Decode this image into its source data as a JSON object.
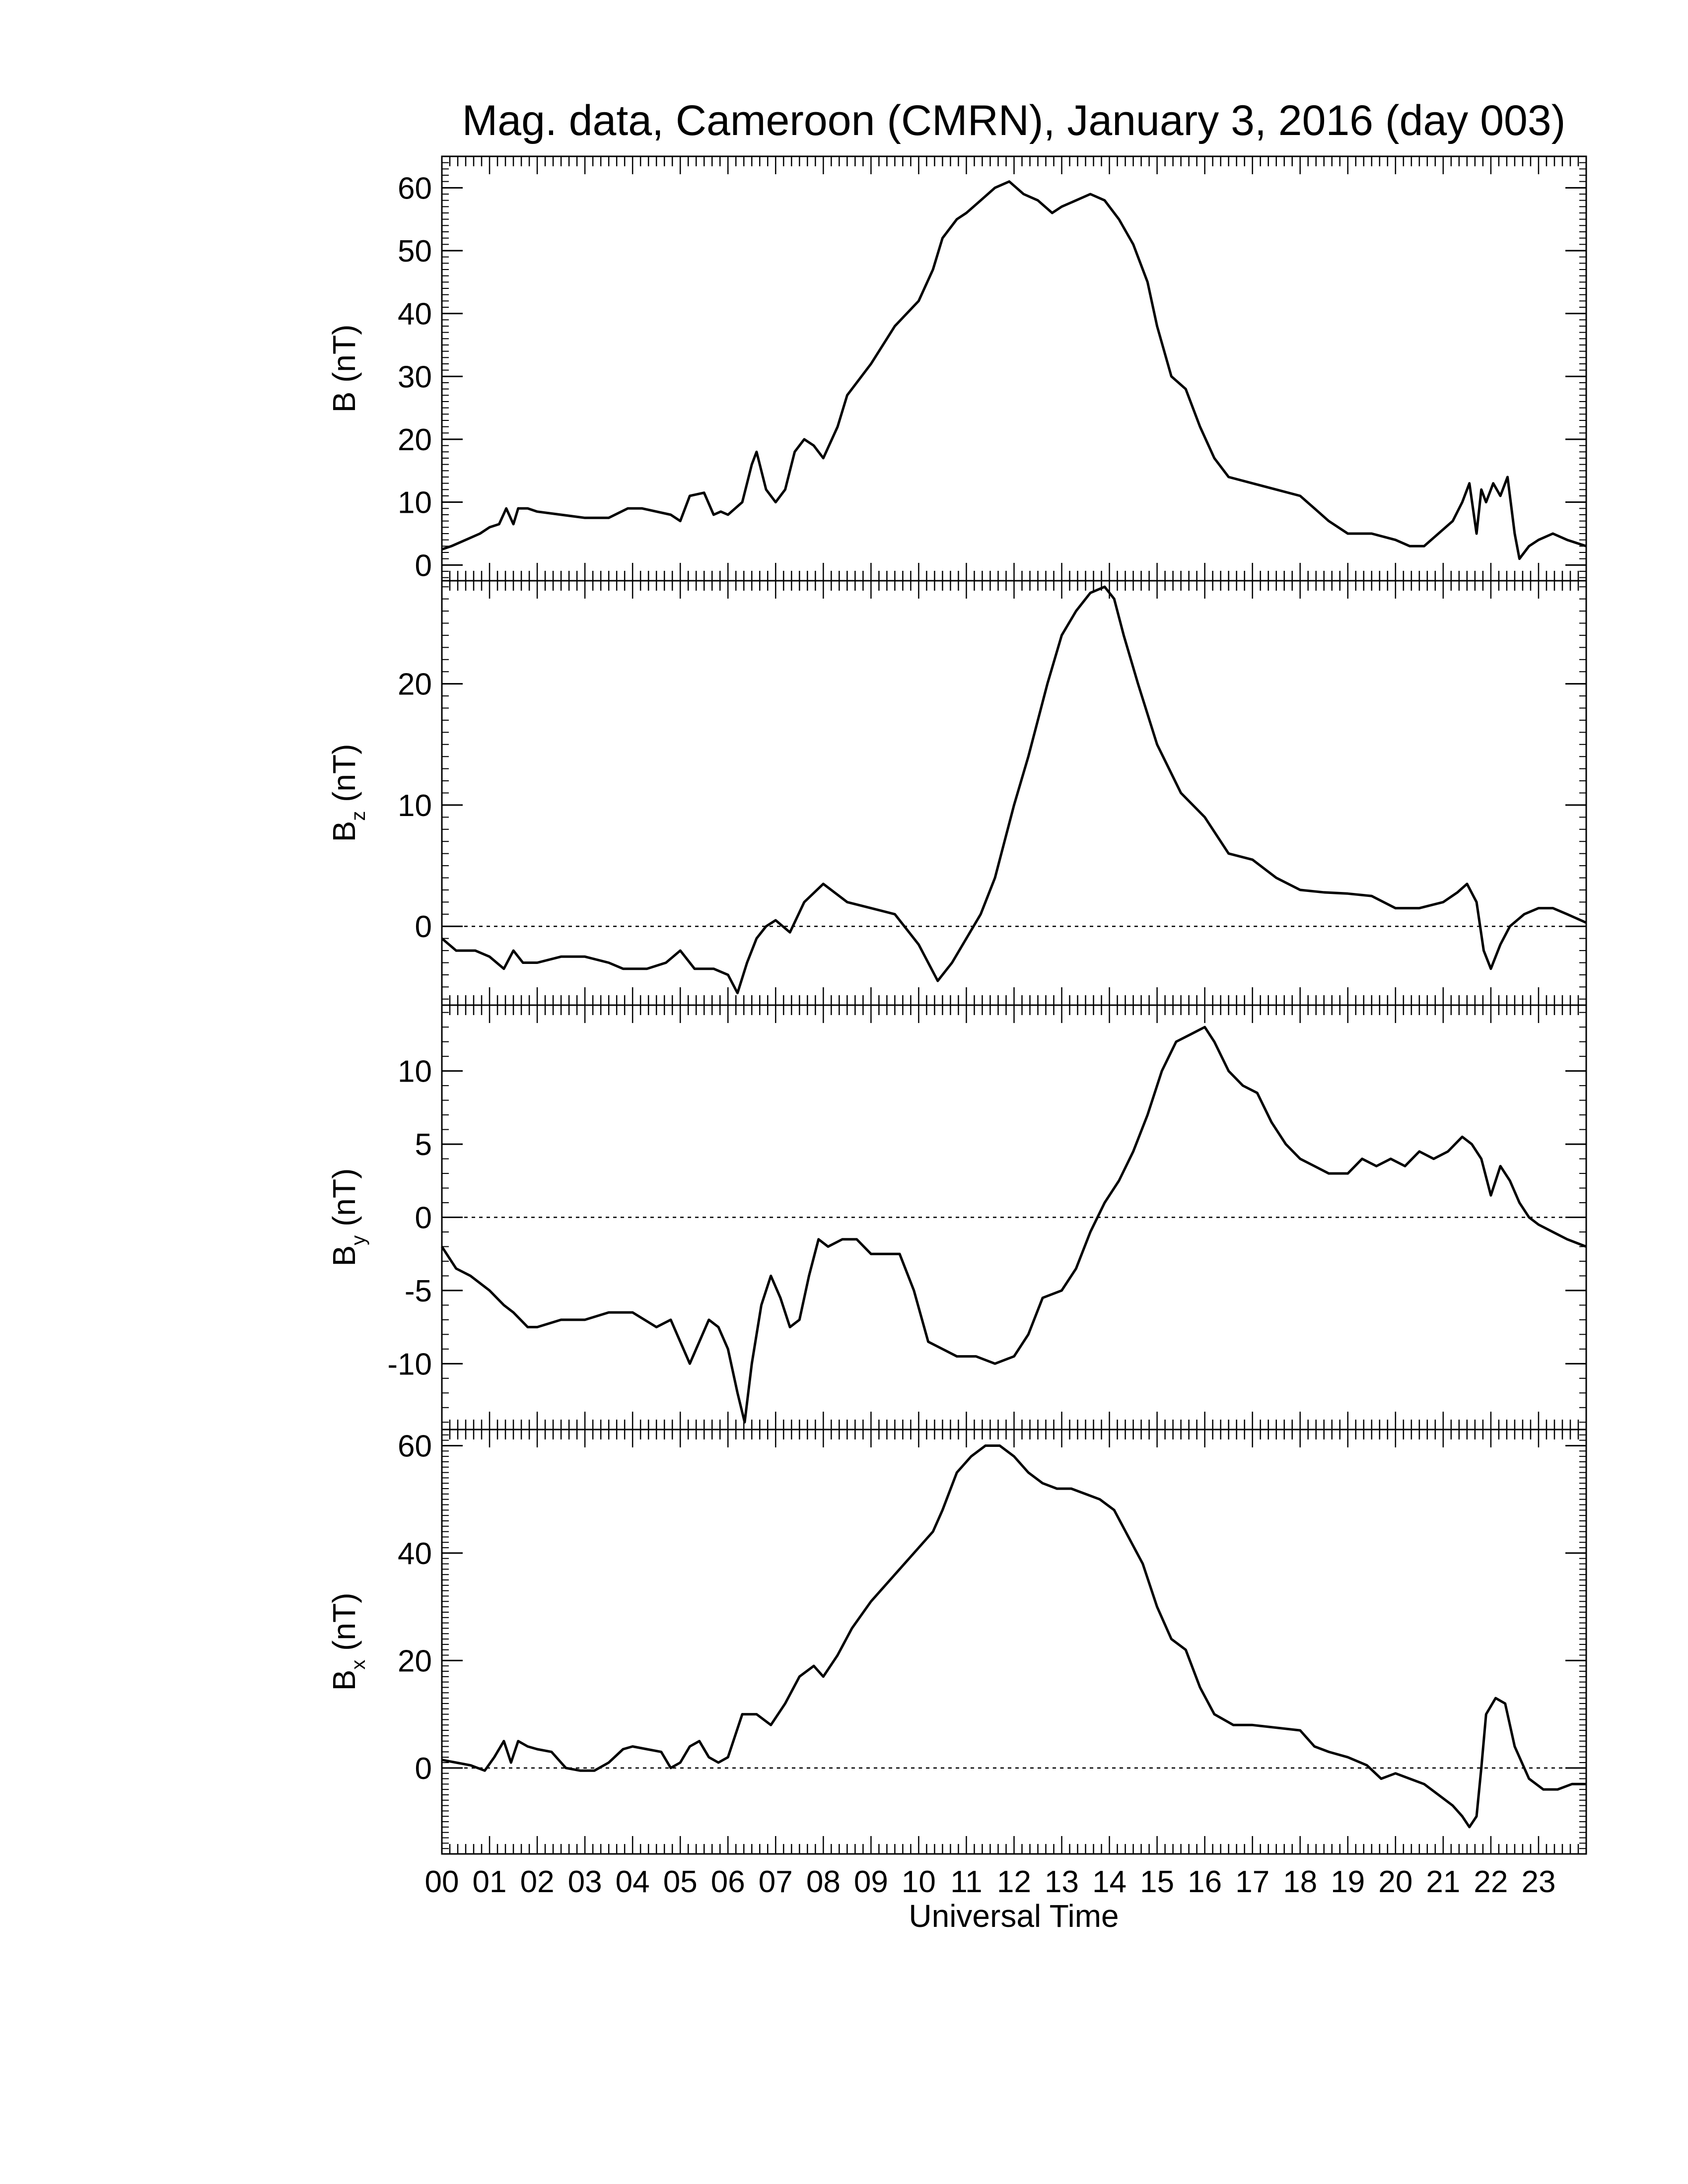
{
  "title": "Mag. data, Cameroon (CMRN), January 3, 2016 (day 003)",
  "xlabel": "Universal Time",
  "xlim": [
    0,
    24
  ],
  "xtick_labels": [
    "00",
    "01",
    "02",
    "03",
    "04",
    "05",
    "06",
    "07",
    "08",
    "09",
    "10",
    "11",
    "12",
    "13",
    "14",
    "15",
    "16",
    "17",
    "18",
    "19",
    "20",
    "21",
    "22",
    "23"
  ],
  "chart_data": [
    {
      "type": "line",
      "ylabel": "B (nT)",
      "ylabel_main": "B",
      "ylabel_sub": "",
      "ylabel_unit": " (nT)",
      "ylim": [
        -2.5,
        65
      ],
      "yticks": [
        0,
        10,
        20,
        30,
        40,
        50,
        60
      ],
      "ytick_labels": [
        "0",
        "10",
        "20",
        "30",
        "40",
        "50",
        "60"
      ],
      "zero_line": false,
      "x": [
        0,
        0.2,
        0.5,
        0.8,
        1.0,
        1.2,
        1.35,
        1.5,
        1.6,
        1.8,
        2.0,
        2.5,
        3.0,
        3.5,
        3.9,
        4.2,
        4.8,
        5.0,
        5.2,
        5.5,
        5.7,
        5.85,
        6.0,
        6.3,
        6.5,
        6.6,
        6.8,
        7.0,
        7.2,
        7.4,
        7.6,
        7.8,
        8.0,
        8.3,
        8.5,
        9.0,
        9.5,
        10.0,
        10.3,
        10.5,
        10.8,
        11.0,
        11.3,
        11.6,
        11.9,
        12.2,
        12.5,
        12.8,
        13.0,
        13.3,
        13.6,
        13.9,
        14.2,
        14.5,
        14.8,
        15.0,
        15.3,
        15.6,
        15.9,
        16.2,
        16.5,
        17.0,
        17.5,
        18.0,
        18.3,
        18.6,
        19.0,
        19.5,
        20.0,
        20.3,
        20.6,
        20.9,
        21.2,
        21.4,
        21.55,
        21.7,
        21.8,
        21.9,
        22.05,
        22.2,
        22.35,
        22.5,
        22.6,
        22.8,
        23.0,
        23.3,
        23.6,
        24.0
      ],
      "y": [
        2.5,
        3,
        4,
        5,
        6,
        6.5,
        9,
        6.5,
        9,
        9,
        8.5,
        8,
        7.5,
        7.5,
        9,
        9,
        8,
        7,
        11,
        11.5,
        8,
        8.5,
        8,
        10,
        16,
        18,
        12,
        10,
        12,
        18,
        20,
        19,
        17,
        22,
        27,
        32,
        38,
        42,
        47,
        52,
        55,
        56,
        58,
        60,
        61,
        59,
        58,
        56,
        57,
        58,
        59,
        58,
        55,
        51,
        45,
        38,
        30,
        28,
        22,
        17,
        14,
        13,
        12,
        11,
        9,
        7,
        5,
        5,
        4,
        3,
        3,
        5,
        7,
        10,
        13,
        5,
        12,
        10,
        13,
        11,
        14,
        5,
        1,
        3,
        4,
        5,
        4,
        3
      ]
    },
    {
      "type": "line",
      "ylabel": "Bz (nT)",
      "ylabel_main": "B",
      "ylabel_sub": "z",
      "ylabel_unit": " (nT)",
      "ylim": [
        -6.5,
        28.5
      ],
      "yticks": [
        0,
        10,
        20
      ],
      "ytick_labels": [
        "0",
        "10",
        "20"
      ],
      "zero_line": true,
      "x": [
        0,
        0.3,
        0.7,
        1.0,
        1.3,
        1.5,
        1.7,
        2.0,
        2.5,
        3.0,
        3.5,
        3.8,
        4.3,
        4.7,
        5.0,
        5.3,
        5.7,
        6.0,
        6.2,
        6.4,
        6.6,
        6.8,
        7.0,
        7.3,
        7.6,
        8.0,
        8.5,
        9.0,
        9.5,
        9.8,
        10.0,
        10.2,
        10.4,
        10.7,
        11.0,
        11.3,
        11.6,
        12.0,
        12.3,
        12.7,
        13.0,
        13.3,
        13.6,
        13.9,
        14.1,
        14.3,
        14.6,
        15.0,
        15.5,
        16.0,
        16.5,
        17.0,
        17.5,
        18.0,
        18.5,
        19.0,
        19.5,
        20.0,
        20.5,
        21.0,
        21.3,
        21.5,
        21.7,
        21.85,
        22.0,
        22.2,
        22.4,
        22.7,
        23.0,
        23.3,
        23.6,
        24.0
      ],
      "y": [
        -1,
        -2,
        -2,
        -2.5,
        -3.5,
        -2,
        -3,
        -3,
        -2.5,
        -2.5,
        -3,
        -3.5,
        -3.5,
        -3,
        -2,
        -3.5,
        -3.5,
        -4,
        -5.5,
        -3,
        -1,
        0,
        0.5,
        -0.5,
        2,
        3.5,
        2,
        1.5,
        1,
        -0.5,
        -1.5,
        -3,
        -4.5,
        -3,
        -1,
        1,
        4,
        10,
        14,
        20,
        24,
        26,
        27.5,
        28,
        27,
        24,
        20,
        15,
        11,
        9,
        6,
        5.5,
        4,
        3,
        2.8,
        2.7,
        2.5,
        1.5,
        1.5,
        2,
        2.8,
        3.5,
        2,
        -2,
        -3.5,
        -1.5,
        0,
        1,
        1.5,
        1.5,
        1,
        0.3
      ]
    },
    {
      "type": "line",
      "ylabel": "By (nT)",
      "ylabel_main": "B",
      "ylabel_sub": "y",
      "ylabel_unit": " (nT)",
      "ylim": [
        -14.5,
        14.5
      ],
      "yticks": [
        -10,
        -5,
        0,
        5,
        10
      ],
      "ytick_labels": [
        "-10",
        "-5",
        "0",
        "5",
        "10"
      ],
      "zero_line": true,
      "x": [
        0,
        0.3,
        0.6,
        1.0,
        1.3,
        1.5,
        1.8,
        2.0,
        2.5,
        3.0,
        3.5,
        4.0,
        4.5,
        4.8,
        5.0,
        5.2,
        5.4,
        5.6,
        5.8,
        6.0,
        6.2,
        6.35,
        6.5,
        6.7,
        6.9,
        7.1,
        7.3,
        7.5,
        7.7,
        7.9,
        8.1,
        8.4,
        8.7,
        9.0,
        9.3,
        9.6,
        9.9,
        10.2,
        10.5,
        10.8,
        11.2,
        11.6,
        12.0,
        12.3,
        12.6,
        13.0,
        13.3,
        13.6,
        13.9,
        14.2,
        14.5,
        14.8,
        15.1,
        15.4,
        15.7,
        16.0,
        16.2,
        16.5,
        16.8,
        17.1,
        17.4,
        17.7,
        18.0,
        18.3,
        18.6,
        19.0,
        19.3,
        19.6,
        19.9,
        20.2,
        20.5,
        20.8,
        21.1,
        21.4,
        21.6,
        21.8,
        22.0,
        22.2,
        22.4,
        22.6,
        22.8,
        23.0,
        23.3,
        23.6,
        24.0
      ],
      "y": [
        -2,
        -3.5,
        -4,
        -5,
        -6,
        -6.5,
        -7.5,
        -7.5,
        -7,
        -7,
        -6.5,
        -6.5,
        -7.5,
        -7,
        -8.5,
        -10,
        -8.5,
        -7,
        -7.5,
        -9,
        -12,
        -14,
        -10,
        -6,
        -4,
        -5.5,
        -7.5,
        -7,
        -4,
        -1.5,
        -2,
        -1.5,
        -1.5,
        -2.5,
        -2.5,
        -2.5,
        -5,
        -8.5,
        -9,
        -9.5,
        -9.5,
        -10,
        -9.5,
        -8,
        -5.5,
        -5,
        -3.5,
        -1,
        1,
        2.5,
        4.5,
        7,
        10,
        12,
        12.5,
        13,
        12,
        10,
        9,
        8.5,
        6.5,
        5,
        4,
        3.5,
        3,
        3,
        4,
        3.5,
        4,
        3.5,
        4.5,
        4,
        4.5,
        5.5,
        5,
        4,
        1.5,
        3.5,
        2.5,
        1,
        0,
        -0.5,
        -1,
        -1.5,
        -2
      ]
    },
    {
      "type": "line",
      "ylabel": "Bx (nT)",
      "ylabel_main": "B",
      "ylabel_sub": "x",
      "ylabel_unit": " (nT)",
      "ylim": [
        -16,
        63
      ],
      "yticks": [
        0,
        20,
        40,
        60
      ],
      "ytick_labels": [
        "0",
        "20",
        "40",
        "60"
      ],
      "zero_line": true,
      "x": [
        0,
        0.3,
        0.6,
        0.9,
        1.1,
        1.3,
        1.45,
        1.6,
        1.8,
        2.0,
        2.3,
        2.6,
        2.9,
        3.2,
        3.5,
        3.8,
        4.0,
        4.3,
        4.6,
        4.8,
        5.0,
        5.2,
        5.4,
        5.6,
        5.8,
        6.0,
        6.3,
        6.6,
        6.9,
        7.2,
        7.5,
        7.8,
        8.0,
        8.3,
        8.6,
        9.0,
        9.5,
        10.0,
        10.3,
        10.5,
        10.8,
        11.1,
        11.4,
        11.7,
        12.0,
        12.3,
        12.6,
        12.9,
        13.2,
        13.5,
        13.8,
        14.1,
        14.4,
        14.7,
        15.0,
        15.3,
        15.6,
        15.9,
        16.2,
        16.6,
        17.0,
        17.5,
        18.0,
        18.3,
        18.6,
        19.0,
        19.4,
        19.7,
        20.0,
        20.3,
        20.6,
        20.9,
        21.2,
        21.4,
        21.55,
        21.7,
        21.8,
        21.9,
        22.1,
        22.3,
        22.5,
        22.8,
        23.1,
        23.4,
        23.7,
        24.0
      ],
      "y": [
        1.5,
        1,
        0.5,
        -0.5,
        2,
        5,
        1,
        5,
        4,
        3.5,
        3,
        0,
        -0.5,
        -0.5,
        1,
        3.5,
        4,
        3.5,
        3,
        0,
        1,
        4,
        5,
        2,
        1,
        2,
        10,
        10,
        8,
        12,
        17,
        19,
        17,
        21,
        26,
        31,
        36,
        41,
        44,
        48,
        55,
        58,
        60,
        60,
        58,
        55,
        53,
        52,
        52,
        51,
        50,
        48,
        43,
        38,
        30,
        24,
        22,
        15,
        10,
        8,
        8,
        7.5,
        7,
        4,
        3,
        2,
        0.5,
        -2,
        -1,
        -2,
        -3,
        -5,
        -7,
        -9,
        -11,
        -9,
        0,
        10,
        13,
        12,
        4,
        -2,
        -4,
        -4,
        -3,
        -3
      ]
    }
  ]
}
